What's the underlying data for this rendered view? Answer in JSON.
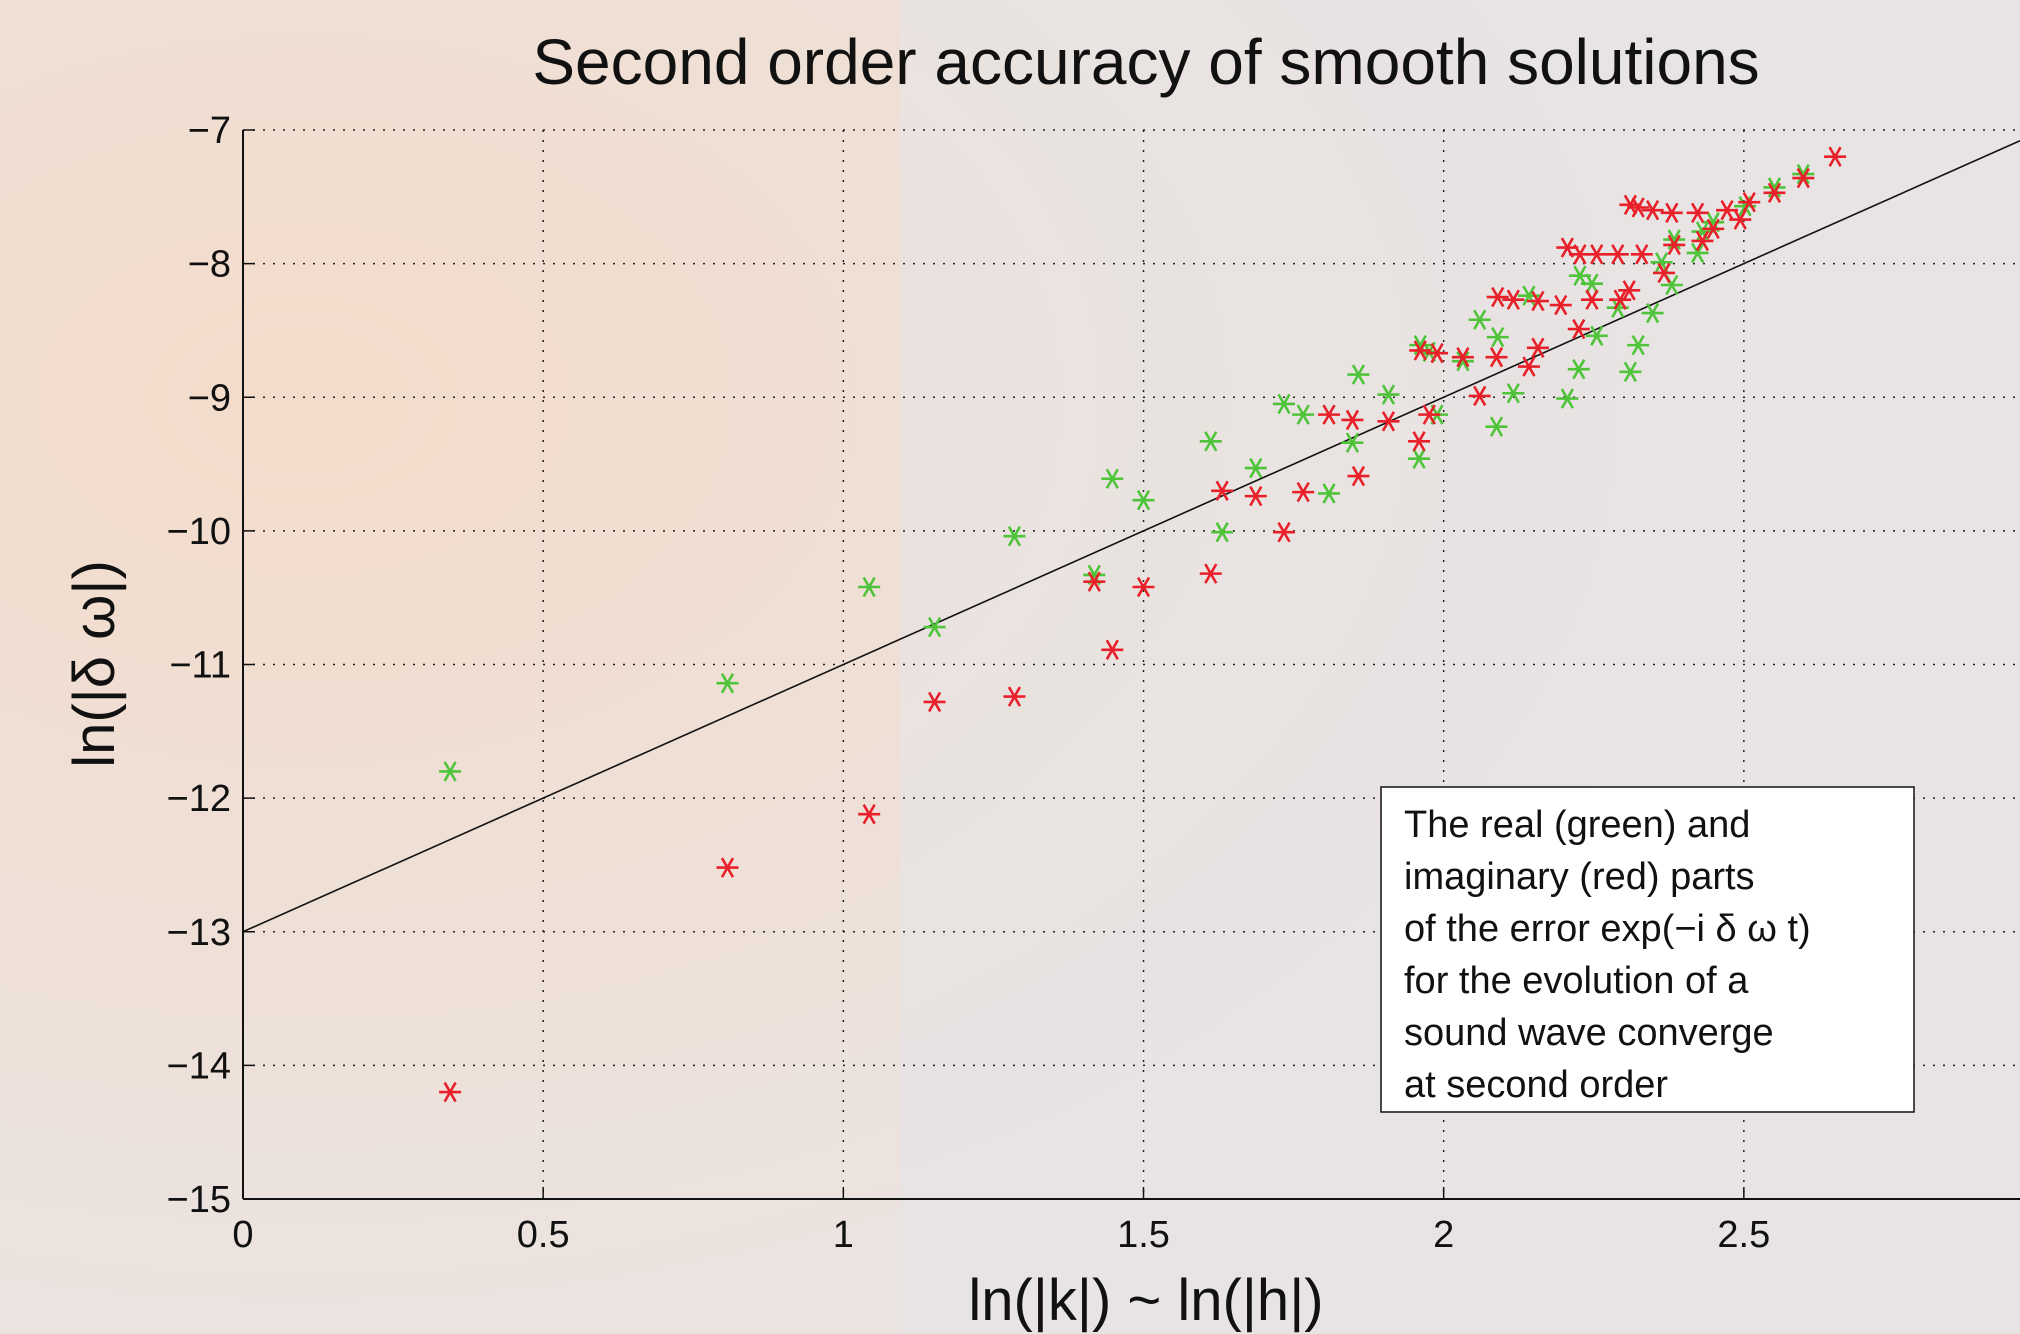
{
  "chart_data": {
    "type": "scatter",
    "title": "Second order accuracy of smooth solutions",
    "x_label": "ln(|k|) ~ ln(|h|)",
    "y_label": "ln(|δ ω|)",
    "xlim": [
      0,
      2.96
    ],
    "ylim": [
      -15,
      -7
    ],
    "xticks": [
      0,
      0.5,
      1,
      1.5,
      2,
      2.5
    ],
    "yticks": [
      {
        "value": -15,
        "label": "−15"
      },
      {
        "value": -14,
        "label": "−14"
      },
      {
        "value": -13,
        "label": "−13"
      },
      {
        "value": -12,
        "label": "−12"
      },
      {
        "value": -11,
        "label": "−11"
      },
      {
        "value": -10,
        "label": "−10"
      },
      {
        "value": -9,
        "label": "−9"
      },
      {
        "value": -8,
        "label": "−8"
      },
      {
        "value": -7,
        "label": "−7"
      }
    ],
    "grid": true,
    "series": [
      {
        "color": "#4fc43a",
        "x": [
          0.345,
          0.807,
          1.043,
          1.152,
          1.285,
          1.418,
          1.448,
          1.5,
          1.612,
          1.631,
          1.687,
          1.734,
          1.766,
          1.809,
          1.848,
          1.858,
          1.908,
          1.959,
          1.961,
          1.976,
          1.989,
          2.032,
          2.06,
          2.088,
          2.09,
          2.116,
          2.142,
          2.206,
          2.225,
          2.227,
          2.247,
          2.255,
          2.29,
          2.311,
          2.324,
          2.348,
          2.363,
          2.38,
          2.384,
          2.423,
          2.431,
          2.449,
          2.502,
          2.551,
          2.599
        ],
        "values": [
          -11.8,
          -11.14,
          -10.42,
          -10.72,
          -10.04,
          -10.33,
          -9.61,
          -9.77,
          -9.33,
          -10.01,
          -9.53,
          -9.05,
          -9.13,
          -9.72,
          -9.34,
          -8.83,
          -8.98,
          -9.46,
          -8.61,
          -8.66,
          -9.13,
          -8.73,
          -8.42,
          -9.22,
          -8.55,
          -8.97,
          -8.24,
          -9.01,
          -8.79,
          -8.09,
          -8.15,
          -8.54,
          -8.33,
          -8.81,
          -8.61,
          -8.37,
          -7.99,
          -8.16,
          -7.82,
          -7.92,
          -7.76,
          -7.69,
          -7.57,
          -7.43,
          -7.33
        ]
      },
      {
        "color": "#e8202a",
        "x": [
          0.345,
          0.807,
          1.043,
          1.152,
          1.285,
          1.418,
          1.448,
          1.5,
          1.612,
          1.631,
          1.687,
          1.734,
          1.766,
          1.809,
          1.848,
          1.858,
          1.908,
          1.959,
          1.961,
          1.976,
          1.989,
          2.032,
          2.06,
          2.088,
          2.09,
          2.116,
          2.142,
          2.157,
          2.157,
          2.195,
          2.206,
          2.225,
          2.227,
          2.247,
          2.255,
          2.29,
          2.294,
          2.309,
          2.311,
          2.324,
          2.33,
          2.348,
          2.367,
          2.38,
          2.384,
          2.423,
          2.431,
          2.449,
          2.472,
          2.494,
          2.509,
          2.551,
          2.599,
          2.652
        ],
        "values": [
          -14.2,
          -12.52,
          -12.12,
          -11.28,
          -11.24,
          -10.38,
          -10.89,
          -10.42,
          -10.32,
          -9.7,
          -9.74,
          -10.01,
          -9.71,
          -9.13,
          -9.17,
          -9.59,
          -9.18,
          -9.33,
          -8.65,
          -9.13,
          -8.67,
          -8.7,
          -8.99,
          -8.7,
          -8.25,
          -8.27,
          -8.77,
          -8.63,
          -8.28,
          -8.31,
          -7.88,
          -8.49,
          -7.93,
          -8.27,
          -7.93,
          -7.93,
          -8.27,
          -8.2,
          -7.56,
          -7.58,
          -7.93,
          -7.6,
          -8.07,
          -7.62,
          -7.86,
          -7.62,
          -7.83,
          -7.74,
          -7.6,
          -7.67,
          -7.54,
          -7.47,
          -7.36,
          -7.2
        ]
      }
    ],
    "reference_line": {
      "x": [
        0,
        2.96
      ],
      "y": [
        -13,
        -7.08
      ]
    },
    "annotation": [
      "The real (green) and",
      "imaginary (red) parts",
      "of the error exp(−i δ ω t)",
      "for the evolution of a",
      "sound wave converge",
      "at second order"
    ]
  }
}
